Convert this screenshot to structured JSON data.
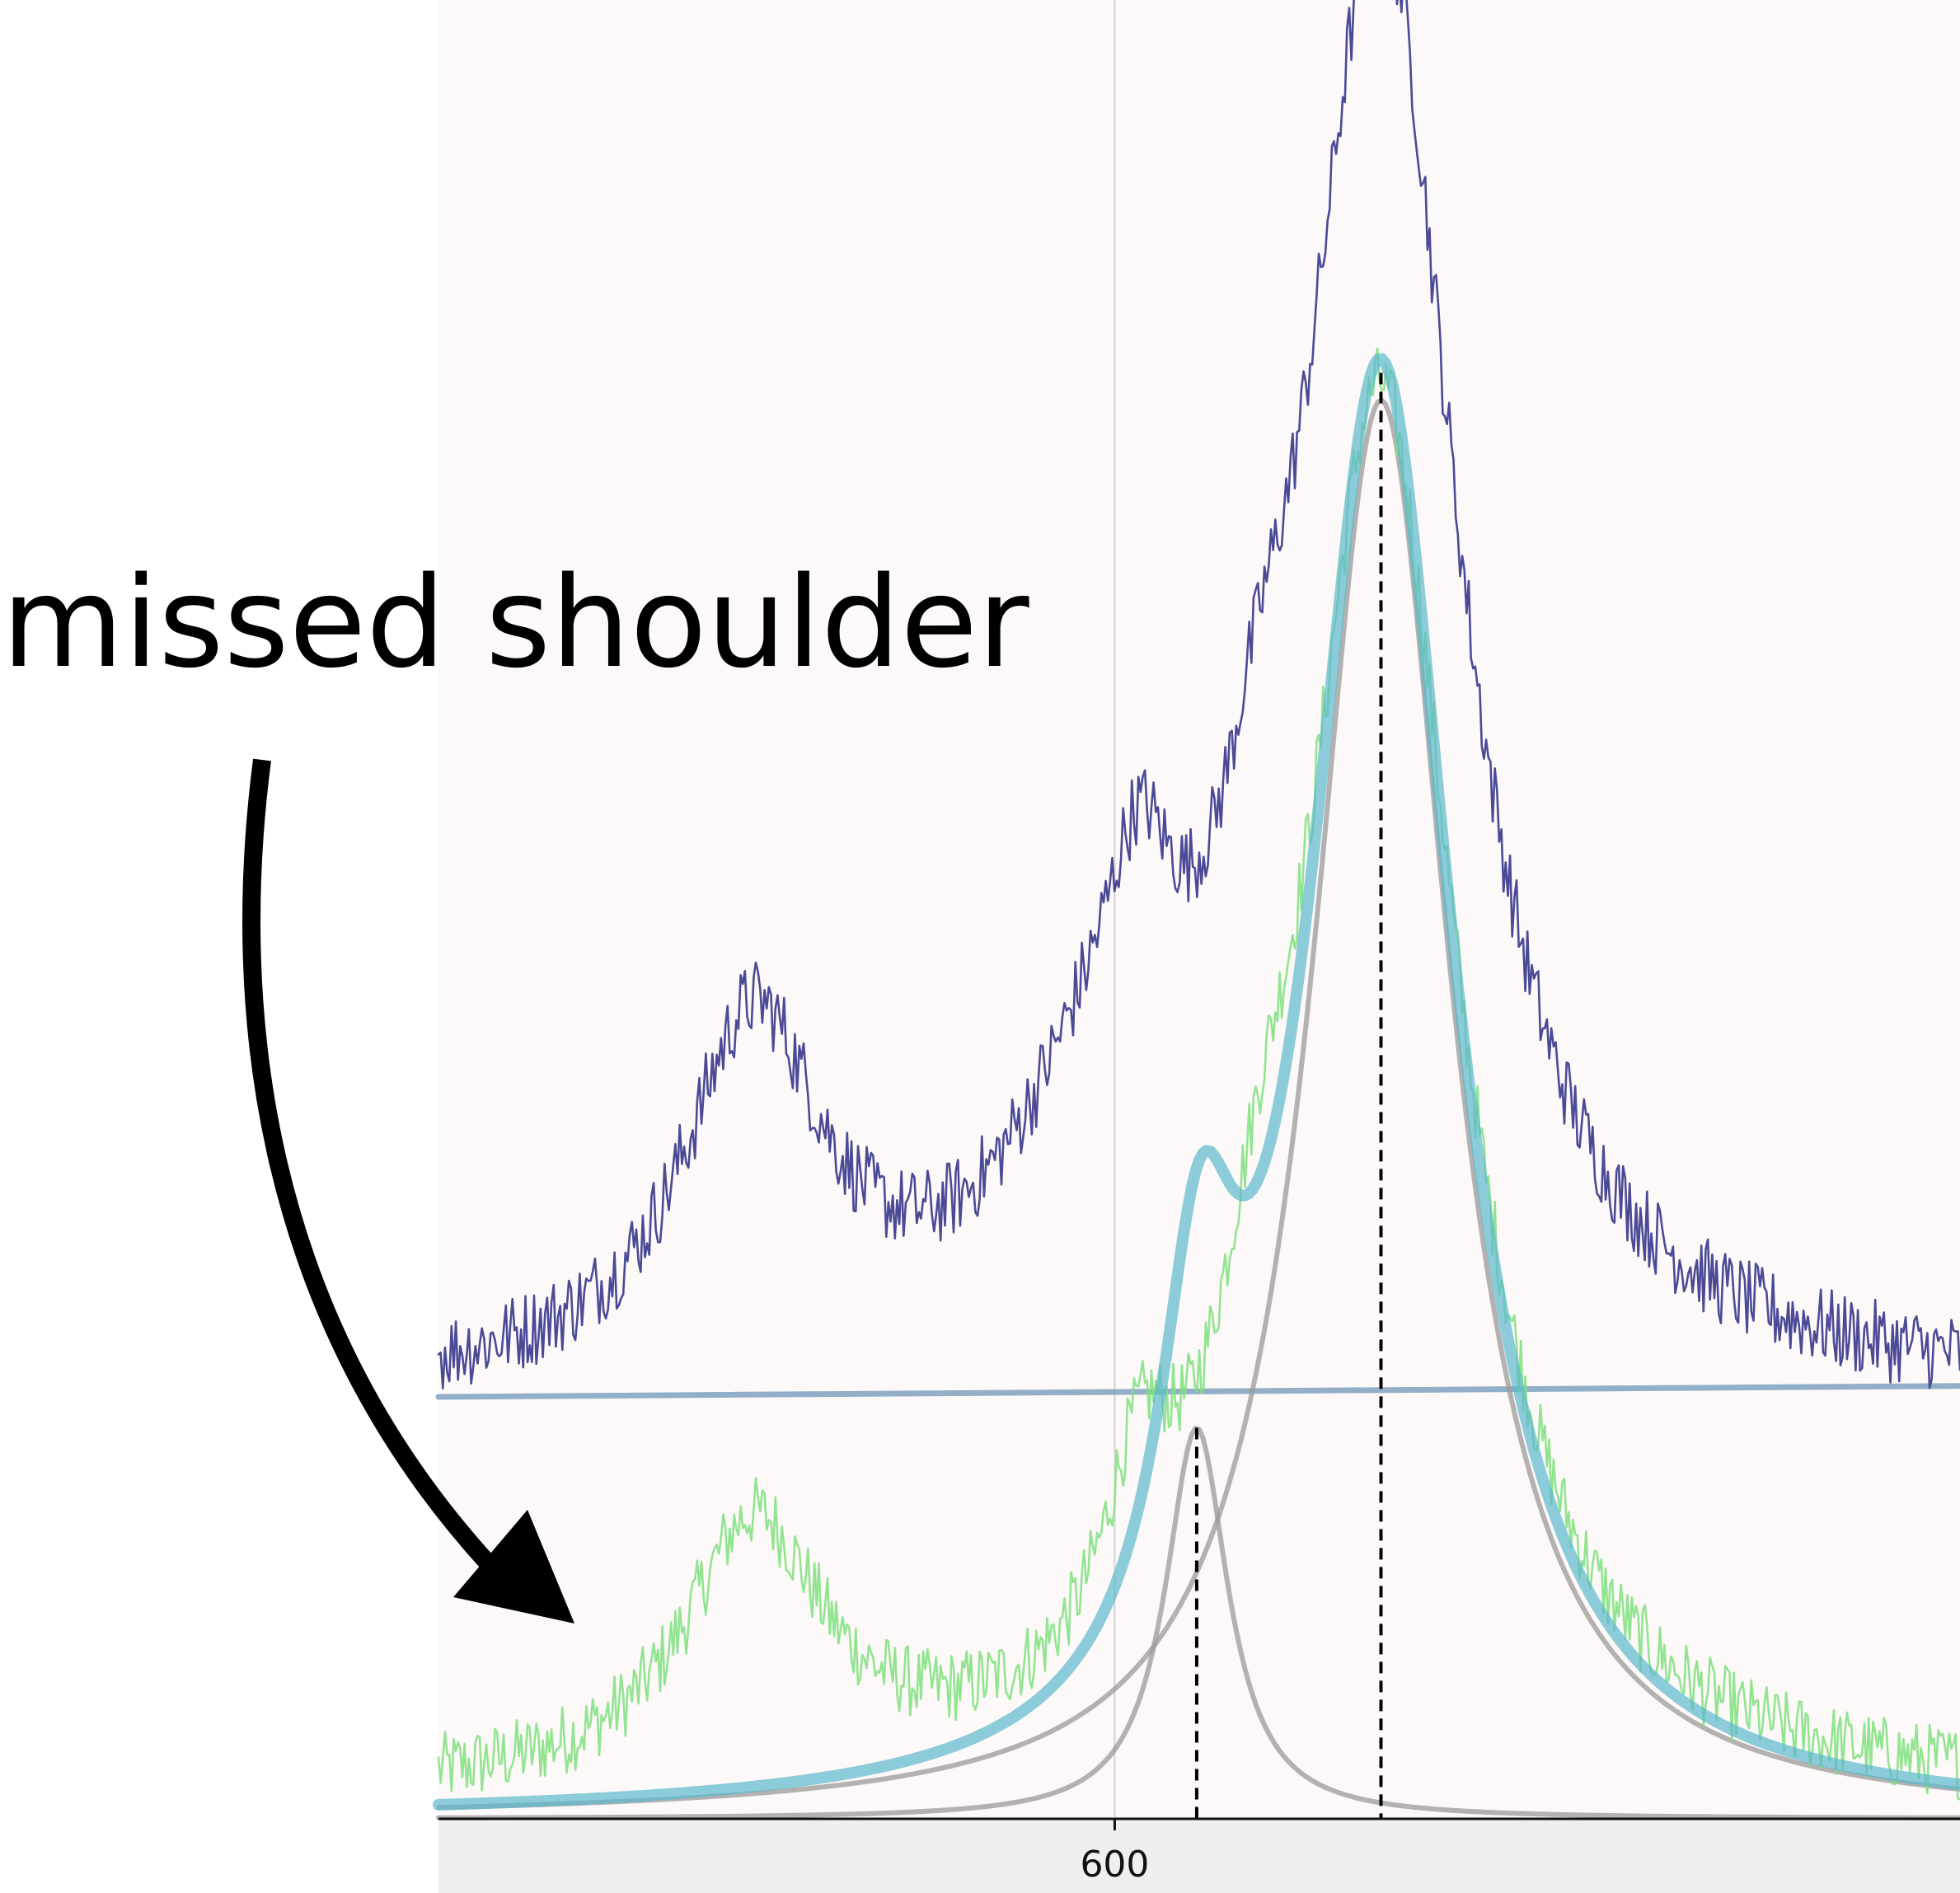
{
  "annotation": {
    "text": "missed shoulder"
  },
  "chart_data": {
    "type": "line",
    "title": "",
    "xlabel": "",
    "ylabel": "",
    "x_ticks": [
      600
    ],
    "x_tick_labels": [
      "600"
    ],
    "xlim": [
      520,
      700
    ],
    "ylim": [
      0,
      1.0
    ],
    "grid": false,
    "legend": "none",
    "series": [
      {
        "role": "raw spectrum",
        "color": "#4b4a96",
        "peaks": [
          {
            "center": 631.5,
            "height": 0.78,
            "width": 11
          },
          {
            "center": 557.3,
            "height": 0.19,
            "width": 10
          },
          {
            "center": 597.0,
            "height": 0.1,
            "width": 12
          },
          {
            "center": 603.0,
            "height": 0.12,
            "width": 5
          },
          {
            "center": 617.0,
            "height": 0.1,
            "width": 6
          }
        ],
        "baseline": 0.233,
        "noise": 0.022
      },
      {
        "role": "baseline-corrected spectrum",
        "color": "#7fe07f",
        "peaks": [
          {
            "center": 631.5,
            "height": 0.76,
            "width": 11
          },
          {
            "center": 557.3,
            "height": 0.14,
            "width": 10
          },
          {
            "center": 617.0,
            "height": 0.1,
            "width": 6
          },
          {
            "center": 603.0,
            "height": 0.1,
            "width": 5
          }
        ],
        "baseline": 0.01,
        "noise": 0.02
      },
      {
        "role": "total fit",
        "color": "#5bb8cc",
        "peaks": [
          {
            "center": 631.5,
            "height": 0.79,
            "width": 10.5
          },
          {
            "center": 610.0,
            "height": 0.21,
            "width": 5.5
          }
        ],
        "baseline": 0.0
      },
      {
        "role": "fit component 1",
        "color": "#9a9a9a",
        "peaks": [
          {
            "center": 631.5,
            "height": 0.78,
            "width": 10.0
          }
        ],
        "baseline": 0.0
      },
      {
        "role": "fit component 2",
        "color": "#9a9a9a",
        "peaks": [
          {
            "center": 609.7,
            "height": 0.215,
            "width": 4.5
          }
        ],
        "baseline": 0.0
      },
      {
        "role": "baseline",
        "color": "#6f95b8",
        "points": [
          [
            520,
            0.232
          ],
          [
            700,
            0.238
          ]
        ]
      }
    ],
    "vlines": [
      {
        "x": 631.5,
        "y_top": 0.795,
        "style": "dashed",
        "color": "#000000"
      },
      {
        "x": 609.7,
        "y_top": 0.215,
        "style": "dashed",
        "color": "#000000"
      },
      {
        "x": 600,
        "style": "solid",
        "color": "#d4d4d4"
      }
    ]
  }
}
